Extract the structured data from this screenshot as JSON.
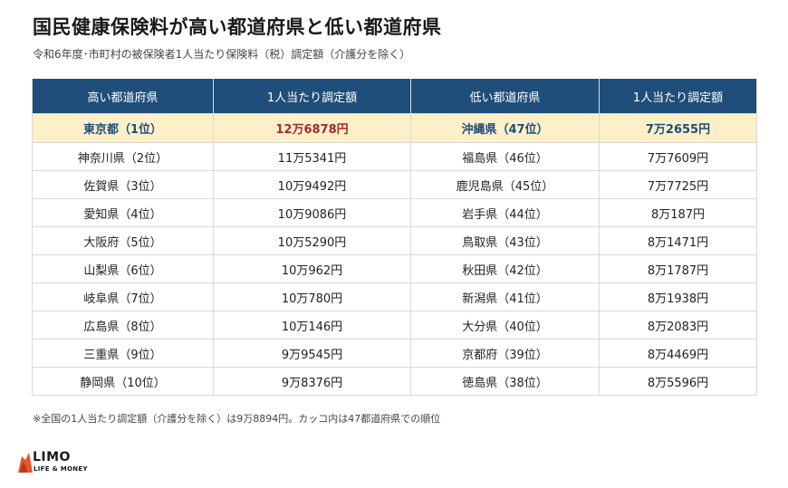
{
  "title": "国民健康保険料が高い都道府県と低い都道府県",
  "subtitle": "令和6年度･市町村の被保険者1人当たり保険料（税）調定額（介護分を除く）",
  "table": {
    "headers": [
      "高い都道府県",
      "1人当たり調定額",
      "低い都道府県",
      "1人当たり調定額"
    ],
    "rows": [
      {
        "high_name": "東京都（1位）",
        "high_amount": "12万6878円",
        "low_name": "沖縄県（47位）",
        "low_amount": "7万2655円"
      },
      {
        "high_name": "神奈川県（2位）",
        "high_amount": "11万5341円",
        "low_name": "福島県（46位）",
        "low_amount": "7万7609円"
      },
      {
        "high_name": "佐賀県（3位）",
        "high_amount": "10万9492円",
        "low_name": "鹿児島県（45位）",
        "low_amount": "7万7725円"
      },
      {
        "high_name": "愛知県（4位）",
        "high_amount": "10万9086円",
        "low_name": "岩手県（44位）",
        "low_amount": "8万187円"
      },
      {
        "high_name": "大阪府（5位）",
        "high_amount": "10万5290円",
        "low_name": "鳥取県（43位）",
        "low_amount": "8万1471円"
      },
      {
        "high_name": "山梨県（6位）",
        "high_amount": "10万962円",
        "low_name": "秋田県（42位）",
        "low_amount": "8万1787円"
      },
      {
        "high_name": "岐阜県（7位）",
        "high_amount": "10万780円",
        "low_name": "新潟県（41位）",
        "low_amount": "8万1938円"
      },
      {
        "high_name": "広島県（8位）",
        "high_amount": "10万146円",
        "low_name": "大分県（40位）",
        "low_amount": "8万2083円"
      },
      {
        "high_name": "三重県（9位）",
        "high_amount": "9万9545円",
        "low_name": "京都府（39位）",
        "low_amount": "8万4469円"
      },
      {
        "high_name": "静岡県（10位）",
        "high_amount": "9万8376円",
        "low_name": "徳島県（38位）",
        "low_amount": "8万5596円"
      }
    ]
  },
  "footnote": "※全国の1人当たり調定額（介護分を除く）は9万8894円。カッコ内は47都道府県での順位",
  "logo": {
    "name": "LIMO",
    "tagline": "LIFE & MONEY"
  },
  "colors": {
    "header_bg": "#1f4e7a",
    "highlight_bg": "#fdf0c8",
    "tokyo_amount": "#a52a2a",
    "accent_logo": "#e2562b"
  },
  "chart_data": {
    "type": "table",
    "title": "国民健康保険料が高い都道府県と低い都道府県",
    "columns": [
      "高い都道府県",
      "1人当たり調定額",
      "低い都道府県",
      "1人当たり調定額"
    ],
    "high": [
      {
        "prefecture": "東京都",
        "rank": 1,
        "amount_yen": 126878
      },
      {
        "prefecture": "神奈川県",
        "rank": 2,
        "amount_yen": 115341
      },
      {
        "prefecture": "佐賀県",
        "rank": 3,
        "amount_yen": 109492
      },
      {
        "prefecture": "愛知県",
        "rank": 4,
        "amount_yen": 109086
      },
      {
        "prefecture": "大阪府",
        "rank": 5,
        "amount_yen": 105290
      },
      {
        "prefecture": "山梨県",
        "rank": 6,
        "amount_yen": 100962
      },
      {
        "prefecture": "岐阜県",
        "rank": 7,
        "amount_yen": 100780
      },
      {
        "prefecture": "広島県",
        "rank": 8,
        "amount_yen": 100146
      },
      {
        "prefecture": "三重県",
        "rank": 9,
        "amount_yen": 99545
      },
      {
        "prefecture": "静岡県",
        "rank": 10,
        "amount_yen": 98376
      }
    ],
    "low": [
      {
        "prefecture": "沖縄県",
        "rank": 47,
        "amount_yen": 72655
      },
      {
        "prefecture": "福島県",
        "rank": 46,
        "amount_yen": 77609
      },
      {
        "prefecture": "鹿児島県",
        "rank": 45,
        "amount_yen": 77725
      },
      {
        "prefecture": "岩手県",
        "rank": 44,
        "amount_yen": 80187
      },
      {
        "prefecture": "鳥取県",
        "rank": 43,
        "amount_yen": 81471
      },
      {
        "prefecture": "秋田県",
        "rank": 42,
        "amount_yen": 81787
      },
      {
        "prefecture": "新潟県",
        "rank": 41,
        "amount_yen": 81938
      },
      {
        "prefecture": "大分県",
        "rank": 40,
        "amount_yen": 82083
      },
      {
        "prefecture": "京都府",
        "rank": 39,
        "amount_yen": 84469
      },
      {
        "prefecture": "徳島県",
        "rank": 38,
        "amount_yen": 85596
      }
    ]
  }
}
